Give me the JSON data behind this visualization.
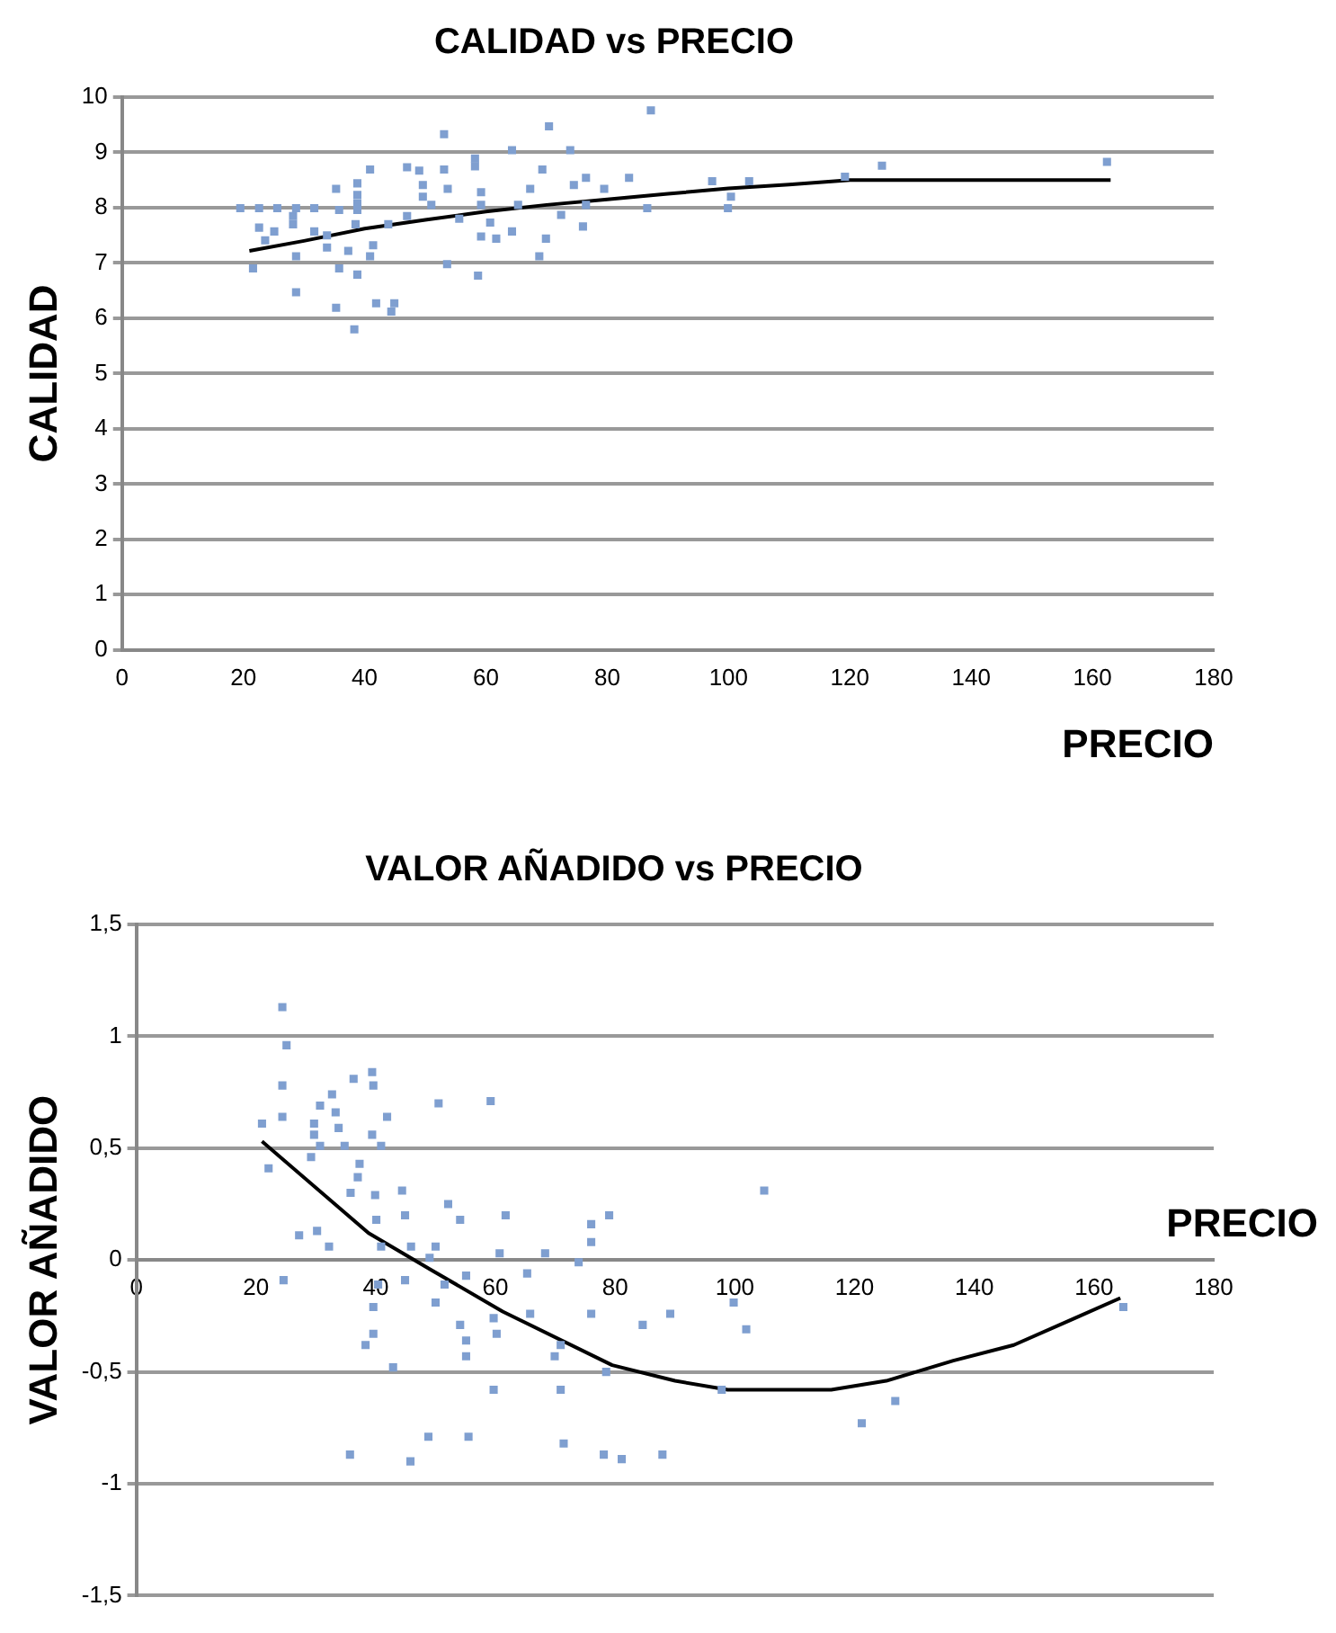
{
  "chart_data": [
    {
      "type": "scatter",
      "title": "CALIDAD vs PRECIO",
      "xlabel": "PRECIO",
      "ylabel": "CALIDAD",
      "xlim": [
        0,
        180
      ],
      "xticks": [
        0,
        20,
        40,
        60,
        80,
        100,
        120,
        140,
        160,
        180
      ],
      "ylim": [
        0,
        10
      ],
      "yticks": [
        0,
        1,
        2,
        3,
        4,
        5,
        6,
        7,
        8,
        9,
        10
      ],
      "grid": "y",
      "legend": false,
      "series": [
        {
          "type": "scatter",
          "color": "#7f9fd0",
          "marker": "square",
          "x": [
            87.2,
            70.4,
            53.1,
            64.3,
            73.9,
            58.2,
            40.9,
            47,
            49,
            53.1,
            58.2,
            69.3,
            76.5,
            83.6,
            38.8,
            49.6,
            53.7,
            67.3,
            74.5,
            79.5,
            35.3,
            38.8,
            49.6,
            59.2,
            38.8,
            51,
            19.5,
            22.6,
            25.6,
            28.7,
            31.7,
            35.8,
            38.8,
            59.2,
            65.3,
            76.5,
            86.6,
            28.2,
            47,
            55.6,
            72.4,
            28.2,
            38.5,
            43.9,
            60.7,
            22.6,
            25.1,
            31.7,
            33.8,
            64.3,
            76,
            23.6,
            59.2,
            61.7,
            69.9,
            33.8,
            41.4,
            37.3,
            28.7,
            40.9,
            68.8,
            21.6,
            35.8,
            38.8,
            53.6,
            58.7,
            28.7,
            35.3,
            41.9,
            44.9,
            44.4,
            38.3,
            97.3,
            103.4,
            100.4,
            99.9,
            119.2,
            125.3,
            162.4
          ],
          "values": [
            9.76,
            9.47,
            9.33,
            9.04,
            9.04,
            8.89,
            8.69,
            8.73,
            8.67,
            8.69,
            8.75,
            8.69,
            8.54,
            8.54,
            8.44,
            8.41,
            8.34,
            8.34,
            8.41,
            8.34,
            8.34,
            8.23,
            8.2,
            8.28,
            8.08,
            8.05,
            7.99,
            7.99,
            7.99,
            7.99,
            7.99,
            7.96,
            7.96,
            8.05,
            8.05,
            8.05,
            7.99,
            7.85,
            7.85,
            7.8,
            7.87,
            7.7,
            7.7,
            7.7,
            7.73,
            7.64,
            7.57,
            7.57,
            7.5,
            7.57,
            7.66,
            7.41,
            7.48,
            7.44,
            7.44,
            7.28,
            7.32,
            7.22,
            7.12,
            7.12,
            7.12,
            6.9,
            6.9,
            6.79,
            6.98,
            6.77,
            6.47,
            6.19,
            6.27,
            6.27,
            6.12,
            5.8,
            8.48,
            8.48,
            8.2,
            7.99,
            8.56,
            8.76,
            8.83
          ]
        },
        {
          "type": "line",
          "color": "#000000",
          "marker": "none",
          "x": [
            21,
            30,
            40,
            50,
            60,
            70,
            80,
            90,
            100,
            110,
            120,
            163
          ],
          "values": [
            7.22,
            7.4,
            7.62,
            7.78,
            7.93,
            8.05,
            8.15,
            8.25,
            8.35,
            8.42,
            8.5,
            8.5
          ]
        }
      ]
    },
    {
      "type": "scatter",
      "title": "VALOR AÑADIDO vs PRECIO",
      "xlabel": "PRECIO",
      "ylabel": "VALOR AÑADIDO",
      "xlim": [
        0,
        180
      ],
      "xticks": [
        0,
        20,
        40,
        60,
        80,
        100,
        120,
        140,
        160,
        180
      ],
      "ylim": [
        -1.5,
        1.5
      ],
      "yticks": [
        {
          "value": -1.5,
          "label": "-1,5"
        },
        -1,
        {
          "value": -0.5,
          "label": "-0,5"
        },
        0,
        {
          "value": 0.5,
          "label": "0,5"
        },
        1,
        {
          "value": 1.5,
          "label": "1,5"
        }
      ],
      "grid": "y",
      "legend": false,
      "series": [
        {
          "type": "scatter",
          "color": "#7f9fd0",
          "marker": "square",
          "x": [
            24.4,
            25.1,
            24.4,
            39.4,
            36.3,
            39.6,
            32.7,
            50.5,
            59.2,
            30.7,
            33.3,
            41.9,
            21,
            24.4,
            29.7,
            33.8,
            29.7,
            39.4,
            30.7,
            34.8,
            40.9,
            29.2,
            22.1,
            37.3,
            37,
            44.4,
            35.8,
            39.9,
            52.1,
            44.9,
            54.1,
            61.7,
            79,
            76,
            40.1,
            27.2,
            30.2,
            32.2,
            40.9,
            45.9,
            50,
            76,
            60.7,
            68.3,
            73.9,
            49,
            65.3,
            55.1,
            24.6,
            44.9,
            40.4,
            51.5,
            50,
            39.6,
            65.8,
            76,
            89.2,
            84.6,
            59.7,
            54.1,
            39.6,
            55.1,
            60.2,
            38.3,
            70.9,
            55.1,
            69.9,
            42.9,
            78.5,
            59.7,
            70.9,
            35.7,
            48.8,
            55.5,
            71.4,
            45.8,
            78.1,
            81.1,
            87.9,
            104.9,
            99.8,
            101.9,
            97.8,
            126.8,
            121.2,
            164.9
          ],
          "values": [
            1.13,
            0.96,
            0.78,
            0.84,
            0.81,
            0.78,
            0.74,
            0.7,
            0.71,
            0.69,
            0.66,
            0.64,
            0.61,
            0.64,
            0.61,
            0.59,
            0.56,
            0.56,
            0.51,
            0.51,
            0.51,
            0.46,
            0.41,
            0.43,
            0.37,
            0.31,
            0.3,
            0.29,
            0.25,
            0.2,
            0.18,
            0.2,
            0.2,
            0.16,
            0.18,
            0.11,
            0.13,
            0.06,
            0.06,
            0.06,
            0.06,
            0.08,
            0.03,
            0.03,
            -0.01,
            0.01,
            -0.06,
            -0.07,
            -0.09,
            -0.09,
            -0.11,
            -0.11,
            -0.19,
            -0.21,
            -0.24,
            -0.24,
            -0.24,
            -0.29,
            -0.26,
            -0.29,
            -0.33,
            -0.36,
            -0.33,
            -0.38,
            -0.38,
            -0.43,
            -0.43,
            -0.48,
            -0.5,
            -0.58,
            -0.58,
            -0.87,
            -0.79,
            -0.79,
            -0.82,
            -0.9,
            -0.87,
            -0.89,
            -0.87,
            0.31,
            -0.19,
            -0.31,
            -0.58,
            -0.63,
            -0.73,
            -0.21
          ]
        },
        {
          "type": "line",
          "color": "#000000",
          "marker": "none",
          "x": [
            21,
            38.8,
            49,
            61.2,
            79.5,
            90,
            98.8,
            103.9,
            116.1,
            125.3,
            136.5,
            146.6,
            156.8,
            164.4
          ],
          "values": [
            0.53,
            0.12,
            -0.04,
            -0.23,
            -0.47,
            -0.54,
            -0.58,
            -0.58,
            -0.58,
            -0.54,
            -0.45,
            -0.38,
            -0.26,
            -0.17
          ]
        }
      ]
    }
  ]
}
